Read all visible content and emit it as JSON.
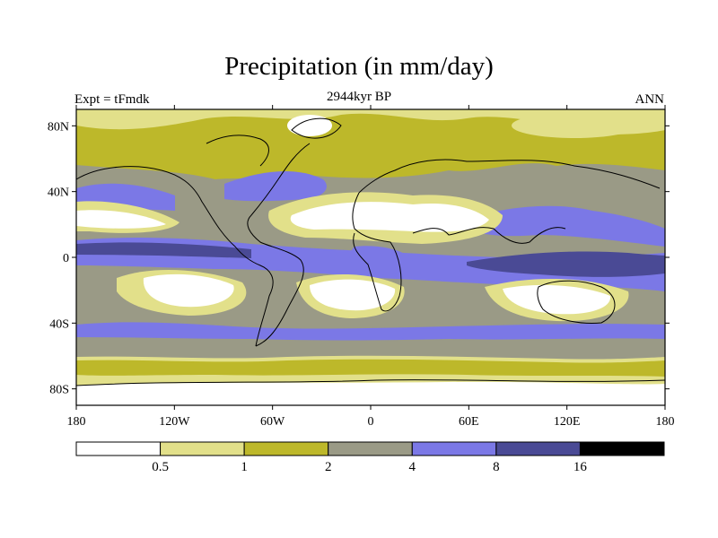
{
  "figure": {
    "title": "Precipitation (in mm/day)",
    "left_label": "Expt = tFmdk",
    "center_label": "2944kyr BP",
    "right_label": "ANN"
  },
  "map": {
    "projection": "cylindrical equidistant",
    "lon_range": [
      -180,
      180
    ],
    "lat_range": [
      -90,
      90
    ],
    "lat_ticks": [
      {
        "value": 80,
        "label": "80N"
      },
      {
        "value": 40,
        "label": "40N"
      },
      {
        "value": 0,
        "label": "0"
      },
      {
        "value": -40,
        "label": "40S"
      },
      {
        "value": -80,
        "label": "80S"
      }
    ],
    "lon_ticks": [
      {
        "value": -180,
        "label": "180"
      },
      {
        "value": -120,
        "label": "120W"
      },
      {
        "value": -60,
        "label": "60W"
      },
      {
        "value": 0,
        "label": "0"
      },
      {
        "value": 60,
        "label": "60E"
      },
      {
        "value": 120,
        "label": "120E"
      },
      {
        "value": 180,
        "label": "180"
      }
    ]
  },
  "colorbar": {
    "levels": [
      "0.5",
      "1",
      "2",
      "4",
      "8",
      "16"
    ],
    "colors": [
      "#ffffff",
      "#e2e08a",
      "#bdb82a",
      "#9a9a86",
      "#7b78e6",
      "#4a4a95",
      "#000000"
    ]
  },
  "colors": {
    "white": "#ffffff",
    "pale_yellow": "#e2e08a",
    "olive": "#bdb82a",
    "gray": "#9a9a86",
    "blue": "#7b78e6",
    "navy": "#4a4a95",
    "black": "#000000"
  }
}
